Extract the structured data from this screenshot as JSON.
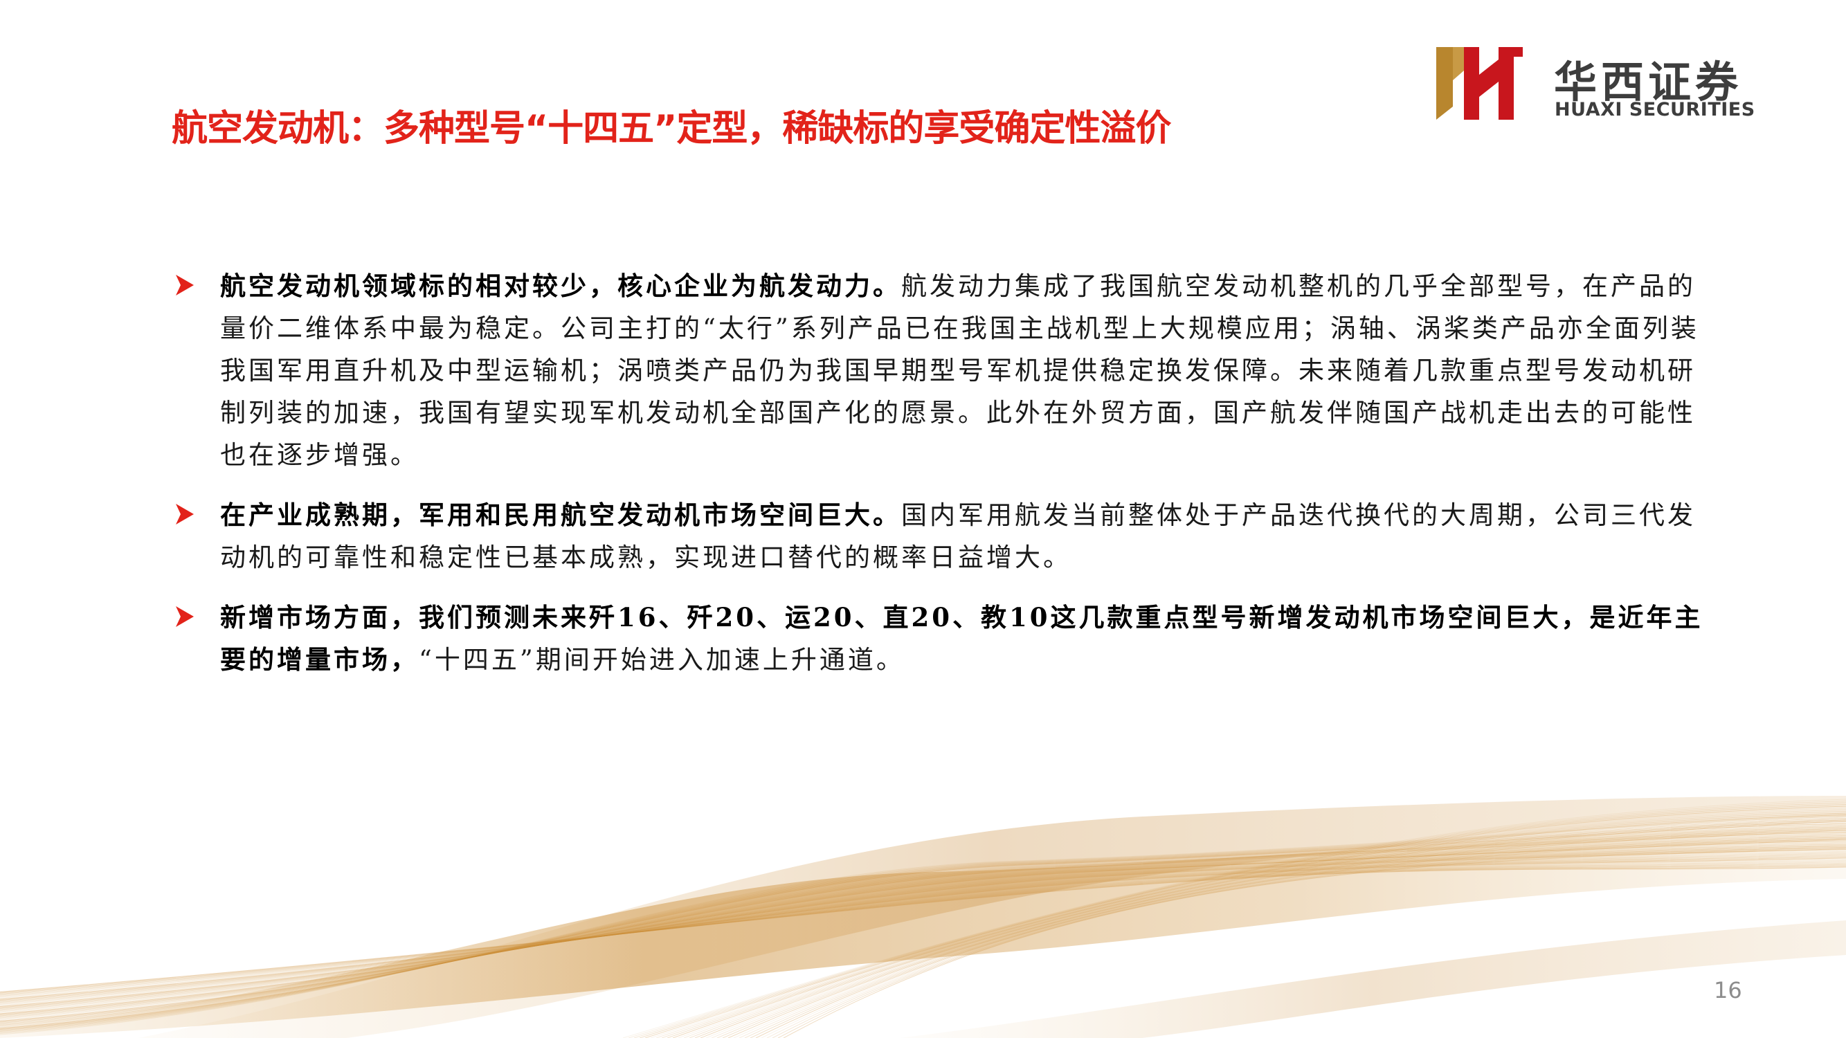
{
  "title": "航空发动机：多种型号“十四五”定型，稀缺标的享受确定性溢价",
  "logo": {
    "cn": "华西证券",
    "en": "HUAXI SECURITIES",
    "colors": {
      "red": "#c8161d",
      "gold": "#b8862e",
      "text": "#3d3d3d"
    }
  },
  "bullets": [
    {
      "bold": "航空发动机领域标的相对较少，核心企业为航发动力。",
      "text": "航发动力集成了我国航空发动机整机的几乎全部型号，在产品的量价二维体系中最为稳定。公司主打的“太行”系列产品已在我国主战机型上大规模应用；涡轴、涡桨类产品亦全面列装我国军用直升机及中型运输机；涡喷类产品仍为我国早期型号军机提供稳定换发保障。未来随着几款重点型号发动机研制列装的加速，我国有望实现军机发动机全部国产化的愿景。此外在外贸方面，国产航发伴随国产战机走出去的可能性也在逐步增强。"
    },
    {
      "bold": "在产业成熟期，军用和民用航空发动机市场空间巨大。",
      "text": "国内军用航发当前整体处于产品迭代换代的大周期，公司三代发动机的可靠性和稳定性已基本成熟，实现进口替代的概率日益增大。"
    },
    {
      "bold": "新增市场方面，我们预测未来歼16、歼20、运20、直20、教10这几款重点型号新增发动机市场空间巨大，是近年主要的增量市场，",
      "text": "“十四五”期间开始进入加速上升通道。"
    }
  ],
  "page_number": "16",
  "colors": {
    "title": "#e2231a",
    "bullet_arrow": "#e2231a",
    "wave": "#c9892e"
  },
  "icons": {
    "bullet": "arrow-bullet-icon",
    "logo": "huaxi-logo-icon",
    "background": "gold-wave-decoration"
  }
}
